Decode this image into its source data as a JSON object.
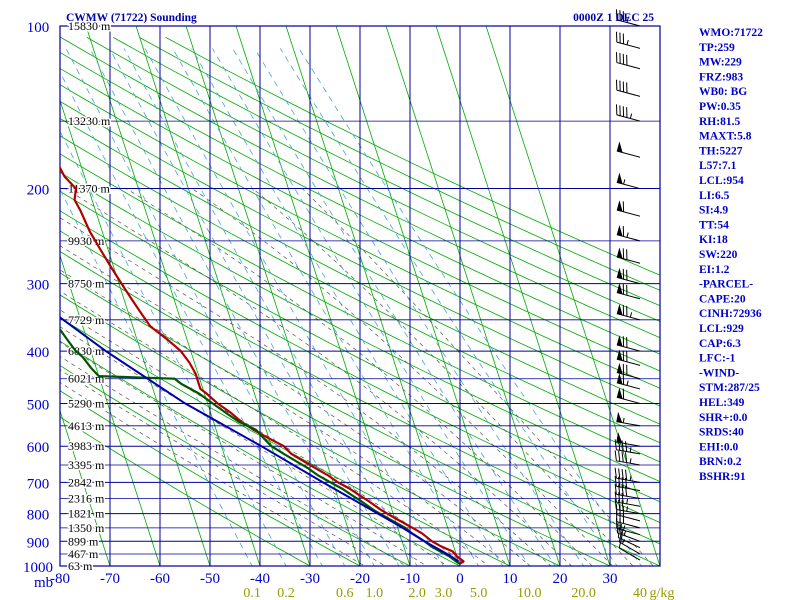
{
  "header": {
    "title": "CWMW (71722) Sounding",
    "datetime": "0000Z  1 DEC 25"
  },
  "colors": {
    "grid": "#000099",
    "isotherm": "#00aa00",
    "dry_adiabat": "#00aa00",
    "moist_adiabat": "#555555",
    "mixing_ratio": "#4aa3d8",
    "temperature": "#b00000",
    "dewpoint": "#005500",
    "parcel": "#0000aa",
    "pressure_label": "#0000cc",
    "temp_label": "#0000cc",
    "mixing_label": "#999900",
    "index_text": "#0000cc",
    "barb": "#000000"
  },
  "indices": [
    "WMO:71722",
    "TP:259",
    "MW:229",
    "FRZ:983",
    "WB0: BG",
    "PW:0.35",
    "RH:81.5",
    "MAXT:5.8",
    "TH:5227",
    "L57:7.1",
    "LCL:954",
    "LI:6.5",
    "SI:4.9",
    "TT:54",
    "KI:18",
    "SW:220",
    "EI:1.2",
    "-PARCEL-",
    "CAPE:20",
    "CINH:72936",
    "LCL:929",
    "CAP:6.3",
    "LFC:-1",
    "-WIND-",
    "STM:287/25",
    "HEL:349",
    "SHR+:0.0",
    "SRDS:40",
    "EHI:0.0",
    "BRN:0.2",
    "BSHR:91"
  ],
  "chart_data": {
    "type": "line",
    "title": "CWMW (71722) Sounding",
    "xlabel": "",
    "ylabel": "mb",
    "grid": true,
    "xlim": [
      -80,
      40
    ],
    "ylim": [
      1000,
      100
    ],
    "y_scale": "log",
    "pressure_ticks": [
      100,
      200,
      300,
      400,
      500,
      600,
      700,
      800,
      900,
      1000
    ],
    "temp_ticks": [
      -80,
      -70,
      -60,
      -50,
      -40,
      -30,
      -20,
      -10,
      0,
      10,
      20,
      30
    ],
    "temp_tick_labels": [
      "-80",
      "-70",
      "-60",
      "-50",
      "-40",
      "-30",
      "-20",
      "-10",
      "0",
      "10",
      "20",
      "30"
    ],
    "mixing_ratio_labels": [
      {
        "w": 0.1,
        "label": "0.1"
      },
      {
        "w": 0.2,
        "label": "0.2"
      },
      {
        "w": 0.6,
        "label": "0.6"
      },
      {
        "w": 1.0,
        "label": "1.0"
      },
      {
        "w": 2.0,
        "label": "2.0"
      },
      {
        "w": 3.0,
        "label": "3.0"
      },
      {
        "w": 5.0,
        "label": "5.0"
      },
      {
        "w": 10.0,
        "label": "10.0"
      },
      {
        "w": 20.0,
        "label": "20.0"
      },
      {
        "w": 40.0,
        "label": "40"
      }
    ],
    "mixing_unit": "g/kg",
    "height_levels": [
      {
        "p": 100,
        "label": "15830 m"
      },
      {
        "p": 150,
        "label": "13230 m"
      },
      {
        "p": 200,
        "label": "11370 m"
      },
      {
        "p": 250,
        "label": "9930 m"
      },
      {
        "p": 300,
        "label": "8750 m"
      },
      {
        "p": 350,
        "label": "7729 m"
      },
      {
        "p": 400,
        "label": "6830 m"
      },
      {
        "p": 450,
        "label": "6021 m"
      },
      {
        "p": 500,
        "label": "5290 m"
      },
      {
        "p": 550,
        "label": "4613 m"
      },
      {
        "p": 600,
        "label": "3983 m"
      },
      {
        "p": 650,
        "label": "3395 m"
      },
      {
        "p": 700,
        "label": "2842 m"
      },
      {
        "p": 750,
        "label": "2316 m"
      },
      {
        "p": 800,
        "label": "1821 m"
      },
      {
        "p": 850,
        "label": "1350 m"
      },
      {
        "p": 900,
        "label": "899 m"
      },
      {
        "p": 950,
        "label": "467 m"
      },
      {
        "p": 1000,
        "label": "63 m"
      }
    ],
    "series": [
      {
        "key": "temperature",
        "points": [
          {
            "p": 990,
            "t": 0.2
          },
          {
            "p": 980,
            "t": 1.0
          },
          {
            "p": 960,
            "t": 0.0
          },
          {
            "p": 940,
            "t": -0.5
          },
          {
            "p": 920,
            "t": -2.5
          },
          {
            "p": 900,
            "t": -4.0
          },
          {
            "p": 870,
            "t": -5.5
          },
          {
            "p": 850,
            "t": -7.0
          },
          {
            "p": 820,
            "t": -9.5
          },
          {
            "p": 790,
            "t": -12.0
          },
          {
            "p": 760,
            "t": -14.0
          },
          {
            "p": 740,
            "t": -15.5
          },
          {
            "p": 720,
            "t": -17.0
          },
          {
            "p": 700,
            "t": -19.0
          },
          {
            "p": 680,
            "t": -20.5
          },
          {
            "p": 660,
            "t": -22.5
          },
          {
            "p": 640,
            "t": -24.5
          },
          {
            "p": 620,
            "t": -26.5
          },
          {
            "p": 610,
            "t": -27.0
          },
          {
            "p": 600,
            "t": -27.5
          },
          {
            "p": 580,
            "t": -30.0
          },
          {
            "p": 560,
            "t": -32.5
          },
          {
            "p": 540,
            "t": -34.5
          },
          {
            "p": 520,
            "t": -36.0
          },
          {
            "p": 500,
            "t": -38.0
          },
          {
            "p": 480,
            "t": -39.5
          },
          {
            "p": 470,
            "t": -40.5
          },
          {
            "p": 460,
            "t": -40.5
          },
          {
            "p": 440,
            "t": -40.5
          },
          {
            "p": 420,
            "t": -41.0
          },
          {
            "p": 400,
            "t": -42.0
          },
          {
            "p": 380,
            "t": -44.0
          },
          {
            "p": 360,
            "t": -46.5
          },
          {
            "p": 340,
            "t": -47.5
          },
          {
            "p": 320,
            "t": -48.5
          },
          {
            "p": 300,
            "t": -49.5
          },
          {
            "p": 280,
            "t": -50.5
          },
          {
            "p": 260,
            "t": -51.5
          },
          {
            "p": 240,
            "t": -52.5
          },
          {
            "p": 220,
            "t": -53.0
          },
          {
            "p": 210,
            "t": -53.5
          },
          {
            "p": 200,
            "t": -52.5
          },
          {
            "p": 190,
            "t": -54.0
          },
          {
            "p": 180,
            "t": -54.5
          },
          {
            "p": 170,
            "t": -55.0
          },
          {
            "p": 160,
            "t": -55.5
          },
          {
            "p": 150,
            "t": -54.5
          },
          {
            "p": 140,
            "t": -55.0
          },
          {
            "p": 130,
            "t": -55.5
          },
          {
            "p": 120,
            "t": -54.5
          },
          {
            "p": 110,
            "t": -55.5
          },
          {
            "p": 100,
            "t": -57.0
          }
        ]
      },
      {
        "key": "dewpoint",
        "points": [
          {
            "p": 990,
            "t": 0.0
          },
          {
            "p": 980,
            "t": -0.5
          },
          {
            "p": 960,
            "t": -1.5
          },
          {
            "p": 940,
            "t": -3.0
          },
          {
            "p": 920,
            "t": -4.5
          },
          {
            "p": 900,
            "t": -5.5
          },
          {
            "p": 870,
            "t": -7.5
          },
          {
            "p": 850,
            "t": -8.5
          },
          {
            "p": 820,
            "t": -11.0
          },
          {
            "p": 790,
            "t": -13.5
          },
          {
            "p": 760,
            "t": -15.5
          },
          {
            "p": 740,
            "t": -17.0
          },
          {
            "p": 720,
            "t": -18.5
          },
          {
            "p": 700,
            "t": -20.5
          },
          {
            "p": 680,
            "t": -22.5
          },
          {
            "p": 660,
            "t": -24.0
          },
          {
            "p": 640,
            "t": -26.0
          },
          {
            "p": 620,
            "t": -28.0
          },
          {
            "p": 600,
            "t": -30.0
          },
          {
            "p": 580,
            "t": -31.0
          },
          {
            "p": 560,
            "t": -32.0
          },
          {
            "p": 540,
            "t": -35.0
          },
          {
            "p": 520,
            "t": -37.0
          },
          {
            "p": 500,
            "t": -39.0
          },
          {
            "p": 480,
            "t": -41.0
          },
          {
            "p": 460,
            "t": -44.0
          },
          {
            "p": 450,
            "t": -45.0
          },
          {
            "p": 445,
            "t": -60.0
          },
          {
            "p": 430,
            "t": -61.0
          },
          {
            "p": 410,
            "t": -62.0
          },
          {
            "p": 400,
            "t": -63.0
          },
          {
            "p": 380,
            "t": -64.0
          },
          {
            "p": 360,
            "t": -65.0
          },
          {
            "p": 340,
            "t": -66.5
          },
          {
            "p": 320,
            "t": -69.0
          },
          {
            "p": 300,
            "t": -71.0
          },
          {
            "p": 280,
            "t": -73.0
          },
          {
            "p": 260,
            "t": -75.0
          },
          {
            "p": 240,
            "t": -77.0
          },
          {
            "p": 220,
            "t": -79.0
          },
          {
            "p": 200,
            "t": -80.0
          }
        ]
      },
      {
        "key": "parcel",
        "points": [
          {
            "p": 980,
            "t": 0.0
          },
          {
            "p": 954,
            "t": -1.5
          },
          {
            "p": 900,
            "t": -5.5
          },
          {
            "p": 850,
            "t": -9.0
          },
          {
            "p": 800,
            "t": -13.0
          },
          {
            "p": 700,
            "t": -22.0
          },
          {
            "p": 600,
            "t": -32.0
          },
          {
            "p": 500,
            "t": -44.5
          },
          {
            "p": 400,
            "t": -57.0
          },
          {
            "p": 300,
            "t": -71.0
          },
          {
            "p": 250,
            "t": -80.0
          }
        ]
      }
    ],
    "wind_barbs": [
      {
        "p": 975,
        "dir": 300,
        "spd": 10
      },
      {
        "p": 950,
        "dir": 300,
        "spd": 15
      },
      {
        "p": 925,
        "dir": 295,
        "spd": 20
      },
      {
        "p": 900,
        "dir": 290,
        "spd": 25
      },
      {
        "p": 875,
        "dir": 285,
        "spd": 25
      },
      {
        "p": 850,
        "dir": 285,
        "spd": 30
      },
      {
        "p": 825,
        "dir": 285,
        "spd": 30
      },
      {
        "p": 800,
        "dir": 280,
        "spd": 35
      },
      {
        "p": 775,
        "dir": 280,
        "spd": 35
      },
      {
        "p": 750,
        "dir": 280,
        "spd": 40
      },
      {
        "p": 725,
        "dir": 280,
        "spd": 40
      },
      {
        "p": 700,
        "dir": 280,
        "spd": 45
      },
      {
        "p": 650,
        "dir": 280,
        "spd": 45
      },
      {
        "p": 620,
        "dir": 280,
        "spd": 45
      },
      {
        "p": 600,
        "dir": 280,
        "spd": 50
      },
      {
        "p": 550,
        "dir": 280,
        "spd": 55
      },
      {
        "p": 500,
        "dir": 285,
        "spd": 60
      },
      {
        "p": 470,
        "dir": 285,
        "spd": 65
      },
      {
        "p": 450,
        "dir": 285,
        "spd": 70
      },
      {
        "p": 425,
        "dir": 285,
        "spd": 70
      },
      {
        "p": 400,
        "dir": 285,
        "spd": 70
      },
      {
        "p": 350,
        "dir": 285,
        "spd": 75
      },
      {
        "p": 320,
        "dir": 285,
        "spd": 70
      },
      {
        "p": 300,
        "dir": 285,
        "spd": 70
      },
      {
        "p": 275,
        "dir": 285,
        "spd": 70
      },
      {
        "p": 250,
        "dir": 285,
        "spd": 65
      },
      {
        "p": 225,
        "dir": 285,
        "spd": 60
      },
      {
        "p": 200,
        "dir": 285,
        "spd": 55
      },
      {
        "p": 175,
        "dir": 285,
        "spd": 50
      },
      {
        "p": 150,
        "dir": 285,
        "spd": 45
      },
      {
        "p": 135,
        "dir": 285,
        "spd": 40
      },
      {
        "p": 120,
        "dir": 285,
        "spd": 40
      },
      {
        "p": 110,
        "dir": 285,
        "spd": 35
      },
      {
        "p": 100,
        "dir": 285,
        "spd": 35
      }
    ]
  }
}
